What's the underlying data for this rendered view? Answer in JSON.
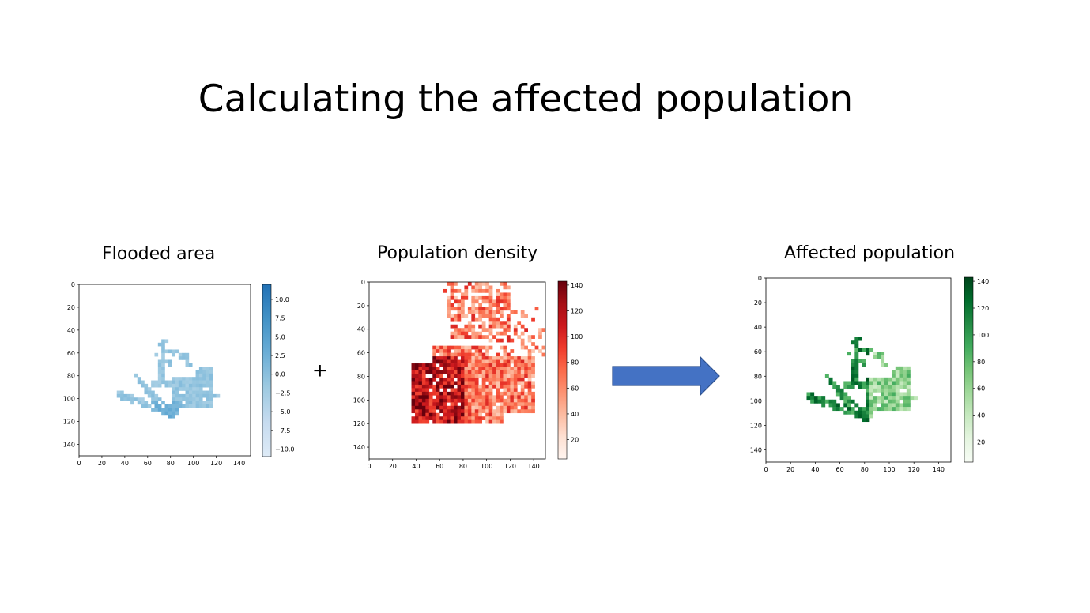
{
  "slide": {
    "title": "Calculating the affected population",
    "operator": "+"
  },
  "chart_data": [
    {
      "type": "heatmap",
      "title": "Flooded area",
      "colormap": "Blues",
      "xticks": [
        0,
        20,
        40,
        60,
        80,
        100,
        120,
        140
      ],
      "yticks": [
        0,
        20,
        40,
        60,
        80,
        100,
        120,
        140
      ],
      "xlim": [
        0,
        150
      ],
      "ylim": [
        150,
        0
      ],
      "colorbar": {
        "range": [
          -11,
          12
        ],
        "ticks": [
          "10.0",
          "7.5",
          "5.0",
          "2.5",
          "0.0",
          "−2.5",
          "−5.0",
          "−7.5",
          "−10.0"
        ],
        "tick_values": [
          10,
          7.5,
          5,
          2.5,
          0,
          -2.5,
          -5,
          -7.5,
          -10
        ]
      }
    },
    {
      "type": "heatmap",
      "title": "Population density",
      "colormap": "Reds",
      "xticks": [
        0,
        20,
        40,
        60,
        80,
        100,
        120,
        140
      ],
      "yticks": [
        0,
        20,
        40,
        60,
        80,
        100,
        120,
        140
      ],
      "xlim": [
        0,
        150
      ],
      "ylim": [
        150,
        0
      ],
      "colorbar": {
        "range": [
          5,
          143
        ],
        "ticks": [
          "140",
          "120",
          "100",
          "80",
          "60",
          "40",
          "20"
        ],
        "tick_values": [
          140,
          120,
          100,
          80,
          60,
          40,
          20
        ]
      }
    },
    {
      "type": "heatmap",
      "title": "Affected population",
      "colormap": "Greens",
      "xticks": [
        0,
        20,
        40,
        60,
        80,
        100,
        120,
        140
      ],
      "yticks": [
        0,
        20,
        40,
        60,
        80,
        100,
        120,
        140
      ],
      "xlim": [
        0,
        150
      ],
      "ylim": [
        150,
        0
      ],
      "colorbar": {
        "range": [
          5,
          143
        ],
        "ticks": [
          "140",
          "120",
          "100",
          "80",
          "60",
          "40",
          "20"
        ],
        "tick_values": [
          140,
          120,
          100,
          80,
          60,
          40,
          20
        ]
      }
    }
  ],
  "colors": {
    "arrow_fill": "#4472c4",
    "arrow_stroke": "#2f528f",
    "blues": [
      "#f7fbff",
      "#deebf7",
      "#c6dbef",
      "#9ecae1",
      "#6baed6",
      "#4292c6",
      "#2171b5",
      "#08519c",
      "#08306b"
    ],
    "reds": [
      "#fff5f0",
      "#fee0d2",
      "#fcbba1",
      "#fc9272",
      "#fb6a4a",
      "#ef3b2c",
      "#cb181d",
      "#a50f15",
      "#67000d"
    ],
    "greens": [
      "#f7fcf5",
      "#e5f5e0",
      "#c7e9c0",
      "#a1d99b",
      "#74c476",
      "#41ab5d",
      "#238b45",
      "#006d2c",
      "#00441b"
    ]
  }
}
